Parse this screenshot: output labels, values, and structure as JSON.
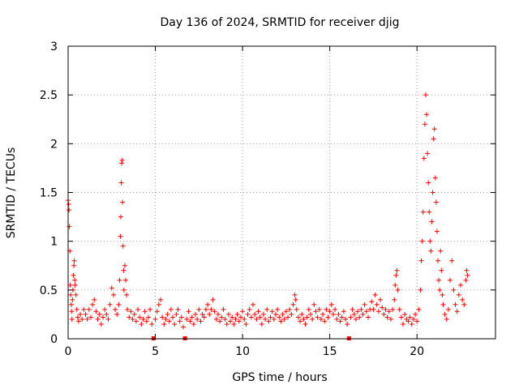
{
  "chart_data": {
    "type": "scatter",
    "title": "Day 136 of 2024, SRMTID for receiver djig",
    "xlabel": "GPS time / hours",
    "ylabel": "SRMTID / TECUs",
    "xlim": [
      0,
      24.5
    ],
    "ylim": [
      0,
      3
    ],
    "x_ticks": [
      0,
      5,
      10,
      15,
      20
    ],
    "x_tick_labels": [
      "0",
      "5",
      "10",
      "15",
      "20"
    ],
    "y_ticks": [
      0,
      0.5,
      1,
      1.5,
      2,
      2.5,
      3
    ],
    "y_tick_labels": [
      "0",
      "0.5",
      "1",
      "1.5",
      "2",
      "2.5",
      "3"
    ],
    "grid": true,
    "marker": "plus",
    "series_color": "#ff0000",
    "gap_marker_color": "#ff0000",
    "gaps_x": [
      4.9,
      6.7,
      16.1
    ],
    "series": [
      {
        "name": "SRMTID",
        "points": [
          [
            0.0,
            1.42
          ],
          [
            0.03,
            1.38
          ],
          [
            0.05,
            1.32
          ],
          [
            0.07,
            1.15
          ],
          [
            0.1,
            0.9
          ],
          [
            0.12,
            0.55
          ],
          [
            0.15,
            0.45
          ],
          [
            0.18,
            0.35
          ],
          [
            0.2,
            0.28
          ],
          [
            0.22,
            0.2
          ],
          [
            0.25,
            0.4
          ],
          [
            0.28,
            0.5
          ],
          [
            0.3,
            0.65
          ],
          [
            0.33,
            0.75
          ],
          [
            0.35,
            0.8
          ],
          [
            0.38,
            0.6
          ],
          [
            0.4,
            0.55
          ],
          [
            0.45,
            0.45
          ],
          [
            0.5,
            0.3
          ],
          [
            0.55,
            0.22
          ],
          [
            0.6,
            0.18
          ],
          [
            0.7,
            0.25
          ],
          [
            0.8,
            0.2
          ],
          [
            0.9,
            0.3
          ],
          [
            1.0,
            0.25
          ],
          [
            1.1,
            0.2
          ],
          [
            1.2,
            0.3
          ],
          [
            1.3,
            0.22
          ],
          [
            1.4,
            0.35
          ],
          [
            1.5,
            0.4
          ],
          [
            1.6,
            0.28
          ],
          [
            1.7,
            0.2
          ],
          [
            1.8,
            0.25
          ],
          [
            1.9,
            0.15
          ],
          [
            2.0,
            0.22
          ],
          [
            2.1,
            0.3
          ],
          [
            2.2,
            0.25
          ],
          [
            2.3,
            0.2
          ],
          [
            2.4,
            0.35
          ],
          [
            2.5,
            0.52
          ],
          [
            2.6,
            0.45
          ],
          [
            2.7,
            0.3
          ],
          [
            2.8,
            0.25
          ],
          [
            2.9,
            0.35
          ],
          [
            2.95,
            0.6
          ],
          [
            3.0,
            1.05
          ],
          [
            3.02,
            1.25
          ],
          [
            3.05,
            1.6
          ],
          [
            3.07,
            1.8
          ],
          [
            3.1,
            1.83
          ],
          [
            3.12,
            1.4
          ],
          [
            3.15,
            0.95
          ],
          [
            3.18,
            0.7
          ],
          [
            3.2,
            0.5
          ],
          [
            3.25,
            0.75
          ],
          [
            3.3,
            0.6
          ],
          [
            3.35,
            0.45
          ],
          [
            3.4,
            0.3
          ],
          [
            3.5,
            0.22
          ],
          [
            3.6,
            0.28
          ],
          [
            3.7,
            0.2
          ],
          [
            3.8,
            0.25
          ],
          [
            3.9,
            0.18
          ],
          [
            4.0,
            0.3
          ],
          [
            4.1,
            0.22
          ],
          [
            4.2,
            0.15
          ],
          [
            4.3,
            0.2
          ],
          [
            4.4,
            0.28
          ],
          [
            4.5,
            0.18
          ],
          [
            4.6,
            0.22
          ],
          [
            4.7,
            0.3
          ],
          [
            4.8,
            0.15
          ],
          [
            5.0,
            0.2
          ],
          [
            5.1,
            0.28
          ],
          [
            5.2,
            0.35
          ],
          [
            5.3,
            0.4
          ],
          [
            5.4,
            0.22
          ],
          [
            5.5,
            0.15
          ],
          [
            5.6,
            0.2
          ],
          [
            5.7,
            0.25
          ],
          [
            5.8,
            0.18
          ],
          [
            5.9,
            0.3
          ],
          [
            6.0,
            0.22
          ],
          [
            6.1,
            0.15
          ],
          [
            6.2,
            0.25
          ],
          [
            6.3,
            0.3
          ],
          [
            6.4,
            0.18
          ],
          [
            6.5,
            0.22
          ],
          [
            6.6,
            0.12
          ],
          [
            6.8,
            0.2
          ],
          [
            6.9,
            0.28
          ],
          [
            7.0,
            0.18
          ],
          [
            7.1,
            0.22
          ],
          [
            7.2,
            0.15
          ],
          [
            7.3,
            0.25
          ],
          [
            7.4,
            0.2
          ],
          [
            7.5,
            0.3
          ],
          [
            7.6,
            0.18
          ],
          [
            7.7,
            0.25
          ],
          [
            7.8,
            0.22
          ],
          [
            7.9,
            0.3
          ],
          [
            8.0,
            0.35
          ],
          [
            8.1,
            0.25
          ],
          [
            8.2,
            0.3
          ],
          [
            8.3,
            0.4
          ],
          [
            8.4,
            0.28
          ],
          [
            8.5,
            0.2
          ],
          [
            8.6,
            0.25
          ],
          [
            8.7,
            0.18
          ],
          [
            8.8,
            0.22
          ],
          [
            8.9,
            0.3
          ],
          [
            9.0,
            0.2
          ],
          [
            9.1,
            0.15
          ],
          [
            9.2,
            0.25
          ],
          [
            9.3,
            0.18
          ],
          [
            9.4,
            0.22
          ],
          [
            9.5,
            0.15
          ],
          [
            9.6,
            0.2
          ],
          [
            9.7,
            0.25
          ],
          [
            9.8,
            0.18
          ],
          [
            9.9,
            0.22
          ],
          [
            10.0,
            0.28
          ],
          [
            10.1,
            0.2
          ],
          [
            10.2,
            0.15
          ],
          [
            10.3,
            0.25
          ],
          [
            10.4,
            0.3
          ],
          [
            10.5,
            0.22
          ],
          [
            10.6,
            0.35
          ],
          [
            10.7,
            0.25
          ],
          [
            10.8,
            0.2
          ],
          [
            10.9,
            0.28
          ],
          [
            11.0,
            0.22
          ],
          [
            11.1,
            0.15
          ],
          [
            11.2,
            0.25
          ],
          [
            11.3,
            0.2
          ],
          [
            11.4,
            0.3
          ],
          [
            11.5,
            0.18
          ],
          [
            11.6,
            0.22
          ],
          [
            11.7,
            0.28
          ],
          [
            11.8,
            0.2
          ],
          [
            11.9,
            0.25
          ],
          [
            12.0,
            0.3
          ],
          [
            12.1,
            0.22
          ],
          [
            12.2,
            0.18
          ],
          [
            12.3,
            0.25
          ],
          [
            12.4,
            0.2
          ],
          [
            12.5,
            0.28
          ],
          [
            12.6,
            0.22
          ],
          [
            12.7,
            0.3
          ],
          [
            12.8,
            0.25
          ],
          [
            12.9,
            0.35
          ],
          [
            13.0,
            0.45
          ],
          [
            13.05,
            0.4
          ],
          [
            13.1,
            0.3
          ],
          [
            13.2,
            0.22
          ],
          [
            13.3,
            0.18
          ],
          [
            13.4,
            0.25
          ],
          [
            13.5,
            0.2
          ],
          [
            13.6,
            0.15
          ],
          [
            13.7,
            0.22
          ],
          [
            13.8,
            0.3
          ],
          [
            13.9,
            0.25
          ],
          [
            14.0,
            0.2
          ],
          [
            14.1,
            0.35
          ],
          [
            14.2,
            0.28
          ],
          [
            14.3,
            0.22
          ],
          [
            14.4,
            0.3
          ],
          [
            14.5,
            0.2
          ],
          [
            14.6,
            0.25
          ],
          [
            14.7,
            0.18
          ],
          [
            14.8,
            0.3
          ],
          [
            14.9,
            0.22
          ],
          [
            15.0,
            0.28
          ],
          [
            15.1,
            0.35
          ],
          [
            15.2,
            0.25
          ],
          [
            15.3,
            0.3
          ],
          [
            15.4,
            0.2
          ],
          [
            15.5,
            0.25
          ],
          [
            15.6,
            0.18
          ],
          [
            15.7,
            0.22
          ],
          [
            15.8,
            0.28
          ],
          [
            15.9,
            0.2
          ],
          [
            16.0,
            0.15
          ],
          [
            16.2,
            0.22
          ],
          [
            16.3,
            0.3
          ],
          [
            16.4,
            0.25
          ],
          [
            16.5,
            0.2
          ],
          [
            16.6,
            0.28
          ],
          [
            16.7,
            0.22
          ],
          [
            16.8,
            0.3
          ],
          [
            16.9,
            0.25
          ],
          [
            17.0,
            0.35
          ],
          [
            17.1,
            0.28
          ],
          [
            17.2,
            0.22
          ],
          [
            17.3,
            0.3
          ],
          [
            17.4,
            0.38
          ],
          [
            17.5,
            0.3
          ],
          [
            17.6,
            0.45
          ],
          [
            17.7,
            0.35
          ],
          [
            17.8,
            0.28
          ],
          [
            17.9,
            0.4
          ],
          [
            18.0,
            0.32
          ],
          [
            18.1,
            0.25
          ],
          [
            18.2,
            0.3
          ],
          [
            18.3,
            0.22
          ],
          [
            18.4,
            0.28
          ],
          [
            18.5,
            0.2
          ],
          [
            18.6,
            0.3
          ],
          [
            18.7,
            0.4
          ],
          [
            18.75,
            0.55
          ],
          [
            18.8,
            0.65
          ],
          [
            18.85,
            0.7
          ],
          [
            18.9,
            0.5
          ],
          [
            19.0,
            0.3
          ],
          [
            19.1,
            0.22
          ],
          [
            19.2,
            0.15
          ],
          [
            19.3,
            0.25
          ],
          [
            19.4,
            0.2
          ],
          [
            19.5,
            0.18
          ],
          [
            19.6,
            0.22
          ],
          [
            19.7,
            0.15
          ],
          [
            19.8,
            0.2
          ],
          [
            19.9,
            0.25
          ],
          [
            20.0,
            0.18
          ],
          [
            20.1,
            0.3
          ],
          [
            20.2,
            0.5
          ],
          [
            20.25,
            0.8
          ],
          [
            20.3,
            1.0
          ],
          [
            20.35,
            1.3
          ],
          [
            20.4,
            1.85
          ],
          [
            20.45,
            2.2
          ],
          [
            20.5,
            2.5
          ],
          [
            20.55,
            2.3
          ],
          [
            20.6,
            1.9
          ],
          [
            20.65,
            1.6
          ],
          [
            20.7,
            1.3
          ],
          [
            20.75,
            1.0
          ],
          [
            20.8,
            0.9
          ],
          [
            20.85,
            1.2
          ],
          [
            20.9,
            1.5
          ],
          [
            20.95,
            2.05
          ],
          [
            21.0,
            2.15
          ],
          [
            21.05,
            1.65
          ],
          [
            21.1,
            1.4
          ],
          [
            21.15,
            1.1
          ],
          [
            21.2,
            0.8
          ],
          [
            21.25,
            0.6
          ],
          [
            21.3,
            0.5
          ],
          [
            21.35,
            0.9
          ],
          [
            21.4,
            0.7
          ],
          [
            21.45,
            0.45
          ],
          [
            21.5,
            0.35
          ],
          [
            21.6,
            0.25
          ],
          [
            21.7,
            0.2
          ],
          [
            21.8,
            0.3
          ],
          [
            21.9,
            0.6
          ],
          [
            22.0,
            0.8
          ],
          [
            22.1,
            0.5
          ],
          [
            22.2,
            0.35
          ],
          [
            22.3,
            0.28
          ],
          [
            22.4,
            0.45
          ],
          [
            22.5,
            0.55
          ],
          [
            22.6,
            0.4
          ],
          [
            22.7,
            0.35
          ],
          [
            22.8,
            0.6
          ],
          [
            22.85,
            0.7
          ],
          [
            22.9,
            0.65
          ]
        ]
      }
    ]
  }
}
